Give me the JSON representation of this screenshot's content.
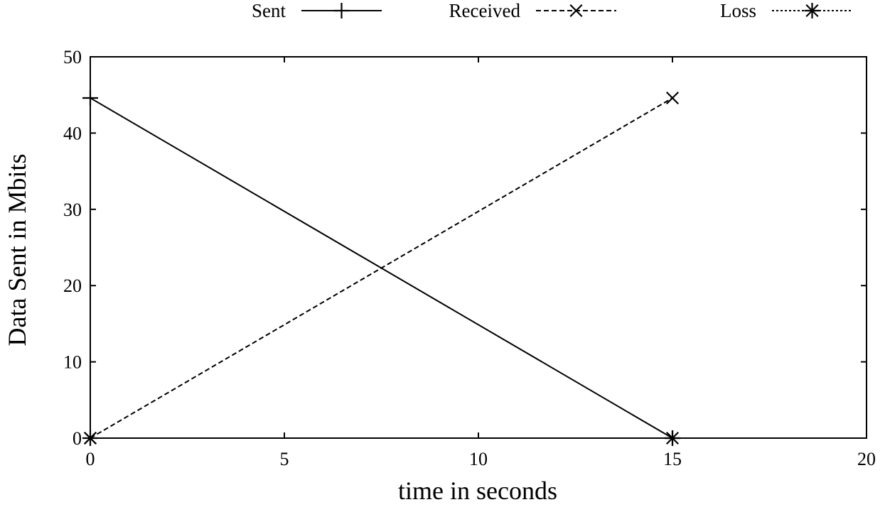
{
  "chart_data": {
    "type": "line",
    "xlabel": "time in seconds",
    "ylabel": "Data Sent in Mbits",
    "xlim": [
      0,
      20
    ],
    "ylim": [
      0,
      50
    ],
    "xticks": [
      0,
      5,
      10,
      15,
      20
    ],
    "yticks": [
      0,
      10,
      20,
      30,
      40,
      50
    ],
    "legend_position": "top",
    "grid": false,
    "series": [
      {
        "name": "Sent",
        "marker": "plus",
        "line_style": "solid",
        "x": [
          0,
          15
        ],
        "y": [
          44.6,
          0
        ]
      },
      {
        "name": "Received",
        "marker": "cross",
        "line_style": "dashed",
        "x": [
          0,
          15
        ],
        "y": [
          0,
          44.6
        ]
      },
      {
        "name": "Loss",
        "marker": "star",
        "line_style": "dotted",
        "x": [
          0,
          15
        ],
        "y": [
          0,
          0
        ]
      }
    ]
  }
}
